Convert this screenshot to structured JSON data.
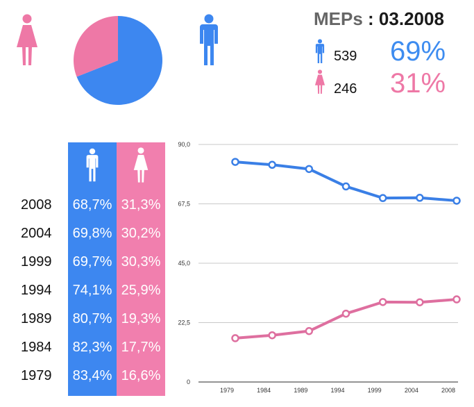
{
  "header": {
    "label": "MEPs",
    "separator": " : ",
    "date": "03.2008"
  },
  "summary": {
    "men": {
      "count": "539",
      "percent": "69%",
      "icon": "male-icon"
    },
    "women": {
      "count": "246",
      "percent": "31%",
      "icon": "female-icon"
    }
  },
  "colors": {
    "men": "#3d87f0",
    "women": "#ee78a6",
    "men_line": "#3a7fe6",
    "women_line": "#de6f9f"
  },
  "pie": {
    "men_share": 69,
    "women_share": 31
  },
  "table": {
    "header_icons": [
      "male-icon",
      "female-icon"
    ],
    "rows": [
      {
        "year": "2008",
        "men": "68,7%",
        "women": "31,3%"
      },
      {
        "year": "2004",
        "men": "69,8%",
        "women": "30,2%"
      },
      {
        "year": "1999",
        "men": "69,7%",
        "women": "30,3%"
      },
      {
        "year": "1994",
        "men": "74,1%",
        "women": "25,9%"
      },
      {
        "year": "1989",
        "men": "80,7%",
        "women": "19,3%"
      },
      {
        "year": "1984",
        "men": "82,3%",
        "women": "17,7%"
      },
      {
        "year": "1979",
        "men": "83,4%",
        "women": "16,6%"
      }
    ]
  },
  "chart_data": {
    "type": "line",
    "title": "",
    "xlabel": "",
    "ylabel": "",
    "categories": [
      "1979",
      "1984",
      "1989",
      "1994",
      "1999",
      "2004",
      "2008"
    ],
    "series": [
      {
        "name": "Men",
        "values": [
          83.4,
          82.3,
          80.7,
          74.1,
          69.7,
          69.8,
          68.7
        ]
      },
      {
        "name": "Women",
        "values": [
          16.6,
          17.7,
          19.3,
          25.9,
          30.3,
          30.2,
          31.3
        ]
      }
    ],
    "ylim": [
      0,
      90
    ],
    "yticks": [
      0,
      22.5,
      45,
      67.5,
      90
    ],
    "ytick_labels": [
      "0",
      "22,5",
      "45,0",
      "67,5",
      "90,0"
    ],
    "grid": true
  }
}
